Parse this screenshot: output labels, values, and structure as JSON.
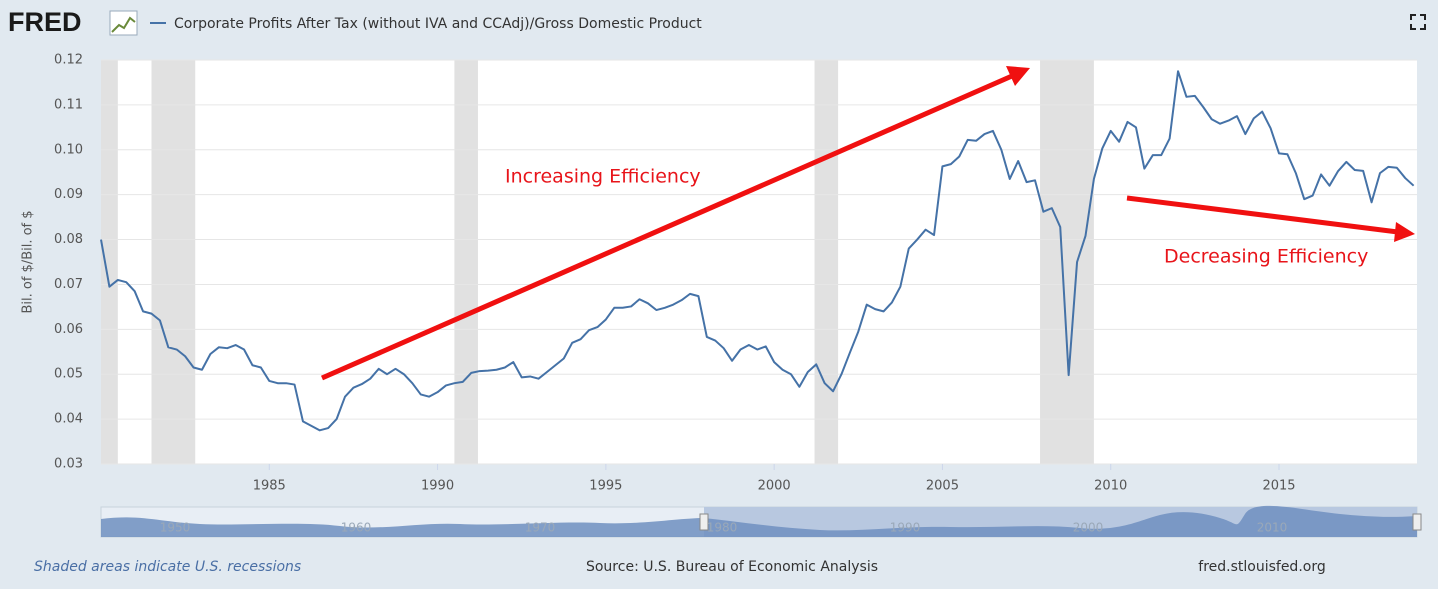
{
  "logo": "FRED",
  "chart_data": {
    "type": "line",
    "y_label": "Bil. of $/Bil. of $",
    "x": [
      1980.0,
      1980.25,
      1980.5,
      1980.75,
      1981.0,
      1981.25,
      1981.5,
      1981.75,
      1982.0,
      1982.25,
      1982.5,
      1982.75,
      1983.0,
      1983.25,
      1983.5,
      1983.75,
      1984.0,
      1984.25,
      1984.5,
      1984.75,
      1985.0,
      1985.25,
      1985.5,
      1985.75,
      1986.0,
      1986.25,
      1986.5,
      1986.75,
      1987.0,
      1987.25,
      1987.5,
      1987.75,
      1988.0,
      1988.25,
      1988.5,
      1988.75,
      1989.0,
      1989.25,
      1989.5,
      1989.75,
      1990.0,
      1990.25,
      1990.5,
      1990.75,
      1991.0,
      1991.25,
      1991.5,
      1991.75,
      1992.0,
      1992.25,
      1992.5,
      1992.75,
      1993.0,
      1993.25,
      1993.5,
      1993.75,
      1994.0,
      1994.25,
      1994.5,
      1994.75,
      1995.0,
      1995.25,
      1995.5,
      1995.75,
      1996.0,
      1996.25,
      1996.5,
      1996.75,
      1997.0,
      1997.25,
      1997.5,
      1997.75,
      1998.0,
      1998.25,
      1998.5,
      1998.75,
      1999.0,
      1999.25,
      1999.5,
      1999.75,
      2000.0,
      2000.25,
      2000.5,
      2000.75,
      2001.0,
      2001.25,
      2001.5,
      2001.75,
      2002.0,
      2002.25,
      2002.5,
      2002.75,
      2003.0,
      2003.25,
      2003.5,
      2003.75,
      2004.0,
      2004.25,
      2004.5,
      2004.75,
      2005.0,
      2005.25,
      2005.5,
      2005.75,
      2006.0,
      2006.25,
      2006.5,
      2006.75,
      2007.0,
      2007.25,
      2007.5,
      2007.75,
      2008.0,
      2008.25,
      2008.5,
      2008.75,
      2009.0,
      2009.25,
      2009.5,
      2009.75,
      2010.0,
      2010.25,
      2010.5,
      2010.75,
      2011.0,
      2011.25,
      2011.5,
      2011.75,
      2012.0,
      2012.25,
      2012.5,
      2012.75,
      2013.0,
      2013.25,
      2013.5,
      2013.75,
      2014.0,
      2014.25,
      2014.5,
      2014.75,
      2015.0,
      2015.25,
      2015.5,
      2015.75,
      2016.0,
      2016.25,
      2016.5,
      2016.75,
      2017.0,
      2017.25,
      2017.5,
      2017.75,
      2018.0,
      2018.25,
      2018.5,
      2018.75,
      2019.0
    ],
    "series": [
      {
        "name": "Corporate Profits After Tax (without IVA and CCAdj)/Gross Domestic Product",
        "color": "#4572a7",
        "values": [
          0.08,
          0.0695,
          0.071,
          0.0705,
          0.0685,
          0.064,
          0.0635,
          0.062,
          0.056,
          0.0555,
          0.054,
          0.0515,
          0.051,
          0.0545,
          0.056,
          0.0558,
          0.0565,
          0.0555,
          0.052,
          0.0515,
          0.0485,
          0.048,
          0.048,
          0.0477,
          0.0395,
          0.0385,
          0.0375,
          0.038,
          0.04,
          0.045,
          0.047,
          0.0478,
          0.049,
          0.0512,
          0.05,
          0.0512,
          0.05,
          0.048,
          0.0455,
          0.045,
          0.046,
          0.0475,
          0.048,
          0.0483,
          0.0503,
          0.0507,
          0.0508,
          0.051,
          0.0515,
          0.0527,
          0.0493,
          0.0495,
          0.049,
          0.0505,
          0.052,
          0.0535,
          0.057,
          0.0578,
          0.0598,
          0.0605,
          0.0622,
          0.0648,
          0.0648,
          0.0651,
          0.0667,
          0.0658,
          0.0643,
          0.0648,
          0.0655,
          0.0665,
          0.0679,
          0.0674,
          0.0583,
          0.0575,
          0.0558,
          0.053,
          0.0555,
          0.0565,
          0.0555,
          0.0562,
          0.0527,
          0.051,
          0.05,
          0.0472,
          0.0505,
          0.0522,
          0.048,
          0.0462,
          0.05,
          0.0548,
          0.0595,
          0.0655,
          0.0645,
          0.064,
          0.066,
          0.0695,
          0.078,
          0.08,
          0.0822,
          0.081,
          0.0963,
          0.0968,
          0.0985,
          0.1022,
          0.102,
          0.1035,
          0.1042,
          0.1,
          0.0935,
          0.0975,
          0.0928,
          0.0932,
          0.0862,
          0.087,
          0.0828,
          0.0498,
          0.075,
          0.0808,
          0.0935,
          0.1003,
          0.1042,
          0.1018,
          0.1062,
          0.105,
          0.0958,
          0.0988,
          0.0988,
          0.1025,
          0.1175,
          0.1118,
          0.112,
          0.1095,
          0.1068,
          0.1058,
          0.1065,
          0.1075,
          0.1035,
          0.107,
          0.1085,
          0.1048,
          0.0992,
          0.099,
          0.0948,
          0.089,
          0.0898,
          0.0945,
          0.092,
          0.0952,
          0.0973,
          0.0955,
          0.0953,
          0.0883,
          0.0948,
          0.0962,
          0.096,
          0.0937,
          0.092
        ]
      }
    ],
    "recessions": [
      [
        1980.0,
        1980.5
      ],
      [
        1981.5,
        1982.8
      ],
      [
        1990.5,
        1991.2
      ],
      [
        2001.2,
        2001.9
      ],
      [
        2007.9,
        2009.5
      ]
    ],
    "xlim": [
      1980.0,
      2019.1
    ],
    "ylim": [
      0.03,
      0.12
    ],
    "xticks": [
      1985,
      1990,
      1995,
      2000,
      2005,
      2010,
      2015
    ],
    "yticks": [
      0.03,
      0.04,
      0.05,
      0.06,
      0.07,
      0.08,
      0.09,
      {
        "value": 0.1,
        "label": "0.10"
      },
      0.11,
      0.12
    ],
    "grid": true,
    "annotations": [
      "Increasing Efficiency",
      "Decreasing Efficiency"
    ]
  },
  "navigator": {
    "labels": [
      "1950",
      "1960",
      "1970",
      "1980",
      "1990",
      "2000",
      "2010"
    ]
  },
  "footer": {
    "note": "Shaded areas indicate U.S. recessions",
    "source": "Source: U.S. Bureau of Economic Analysis",
    "site": "fred.stlouisfed.org"
  }
}
